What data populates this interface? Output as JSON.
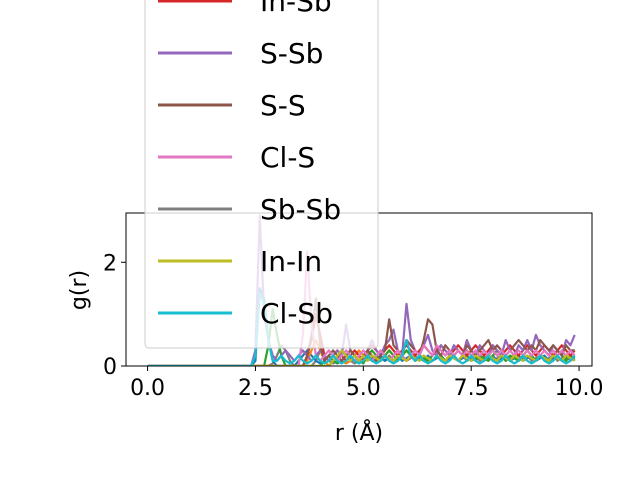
{
  "chart_data": {
    "type": "line",
    "xlabel": "r (Å)",
    "ylabel": "g(r)",
    "xlim": [
      -0.5,
      10.3
    ],
    "ylim": [
      0,
      2.95
    ],
    "xticks": [
      0.0,
      2.5,
      5.0,
      7.5,
      10.0
    ],
    "xtick_labels": [
      "0.0",
      "2.5",
      "5.0",
      "7.5",
      "10.0"
    ],
    "yticks": [
      0,
      2
    ],
    "ytick_labels": [
      "0",
      "2"
    ],
    "grid": false,
    "legend_position": "upper-left, overflowing above the axes",
    "legend_visible": [
      "In-Sb",
      "S-Sb",
      "S-S",
      "Cl-S",
      "Sb-Sb",
      "In-In",
      "Cl-Sb"
    ],
    "x": [
      0.0,
      0.1,
      0.2,
      0.3,
      0.4,
      0.5,
      0.6,
      0.7,
      0.8,
      0.9,
      1.0,
      1.1,
      1.2,
      1.3,
      1.4,
      1.5,
      1.6,
      1.7,
      1.8,
      1.9,
      2.0,
      2.1,
      2.2,
      2.3,
      2.4,
      2.5,
      2.6,
      2.7,
      2.8,
      2.9,
      3.0,
      3.1,
      3.2,
      3.3,
      3.4,
      3.5,
      3.6,
      3.7,
      3.8,
      3.9,
      4.0,
      4.1,
      4.2,
      4.3,
      4.4,
      4.5,
      4.6,
      4.7,
      4.8,
      4.9,
      5.0,
      5.1,
      5.2,
      5.3,
      5.4,
      5.5,
      5.6,
      5.7,
      5.8,
      5.9,
      6.0,
      6.1,
      6.2,
      6.3,
      6.4,
      6.5,
      6.6,
      6.7,
      6.8,
      6.9,
      7.0,
      7.1,
      7.2,
      7.3,
      7.4,
      7.5,
      7.6,
      7.7,
      7.8,
      7.9,
      8.0,
      8.1,
      8.2,
      8.3,
      8.4,
      8.5,
      8.6,
      8.7,
      8.8,
      8.9,
      9.0,
      9.1,
      9.2,
      9.3,
      9.4,
      9.5,
      9.6,
      9.7,
      9.8,
      9.9
    ],
    "series": [
      {
        "name": "Sb-Sb",
        "color": "#7f7f7f",
        "values": [
          0,
          0,
          0,
          0,
          0,
          0,
          0,
          0,
          0,
          0,
          0,
          0,
          0,
          0,
          0,
          0,
          0,
          0,
          0,
          0,
          0,
          0,
          0,
          0,
          0,
          0,
          0,
          0,
          0,
          0.05,
          0.2,
          0.4,
          0.3,
          0.1,
          0,
          0,
          0,
          0,
          0,
          0.1,
          0.3,
          0.2,
          0.1,
          0.05,
          0.1,
          0.3,
          0.2,
          0.1,
          0.05,
          0.1,
          0.2,
          0.15,
          0.1,
          0.2,
          0.15,
          0.1,
          0.2,
          0.1,
          0.15,
          0.2,
          0.1,
          0.15,
          0.2,
          0.1,
          0.2,
          0.15,
          0.1,
          0.2,
          0.15,
          0.1,
          0.2,
          0.15,
          0.1,
          0.2,
          0.1,
          0.15,
          0.2,
          0.1,
          0.15,
          0.2,
          0.1,
          0.15,
          0.2,
          0.1,
          0.15,
          0.2,
          0.1,
          0.15,
          0.2,
          0.1,
          0.15,
          0.2,
          0.1,
          0.15,
          0.2,
          0.1,
          0.15,
          0.2,
          0.1,
          0.15
        ]
      },
      {
        "name": "",
        "color": "#1f77b4",
        "values": [
          0,
          0,
          0,
          0,
          0,
          0,
          0,
          0,
          0,
          0,
          0,
          0,
          0,
          0,
          0,
          0,
          0,
          0,
          0,
          0,
          0,
          0,
          0,
          0,
          0,
          0.1,
          1.5,
          1.3,
          0.5,
          0.1,
          0,
          0,
          0,
          0,
          0,
          0.1,
          0.2,
          0.3,
          0.2,
          0.1,
          0.05,
          0.1,
          0.2,
          0.1,
          0.05,
          0.1,
          0.2,
          0.15,
          0.1,
          0.05,
          0.1,
          0.2,
          0.15,
          0.1,
          0.2,
          0.1,
          0.15,
          0.1,
          0.2,
          0.1,
          0.15,
          0.2,
          0.1,
          0.15,
          0.1,
          0.2,
          0.1,
          0.15,
          0.2,
          0.1,
          0.15,
          0.2,
          0.1,
          0.15,
          0.2,
          0.1,
          0.15,
          0.2,
          0.1,
          0.15,
          0.2,
          0.1,
          0.15,
          0.2,
          0.1,
          0.15,
          0.2,
          0.1,
          0.15,
          0.2,
          0.1,
          0.15,
          0.2,
          0.1,
          0.15,
          0.2,
          0.1,
          0.15,
          0.2,
          0.1
        ]
      },
      {
        "name": "",
        "color": "#ff7f0e",
        "values": [
          0,
          0,
          0,
          0,
          0,
          0,
          0,
          0,
          0,
          0,
          0,
          0,
          0,
          0,
          0,
          0,
          0,
          0,
          0,
          0,
          0,
          0,
          0,
          0,
          0,
          0,
          0,
          0,
          0,
          0,
          0,
          0,
          0,
          0,
          0,
          0,
          0,
          0.1,
          0.3,
          0.5,
          0.3,
          0.1,
          0,
          0.1,
          0.2,
          0.1,
          0.05,
          0.1,
          0.2,
          0.3,
          0.2,
          0.1,
          0.2,
          0.15,
          0.1,
          0.2,
          0.3,
          0.2,
          0.1,
          0.2,
          0.3,
          0.2,
          0.1,
          0.2,
          0.15,
          0.1,
          0.2,
          0.3,
          0.2,
          0.1,
          0.2,
          0.15,
          0.1,
          0.2,
          0.3,
          0.2,
          0.1,
          0.2,
          0.15,
          0.1,
          0.2,
          0.3,
          0.2,
          0.1,
          0.2,
          0.15,
          0.1,
          0.2,
          0.3,
          0.2,
          0.1,
          0.2,
          0.15,
          0.1,
          0.2,
          0.3,
          0.2,
          0.1,
          0.2,
          0.15
        ]
      },
      {
        "name": "",
        "color": "#2ca02c",
        "values": [
          0,
          0,
          0,
          0,
          0,
          0,
          0,
          0,
          0,
          0,
          0,
          0,
          0,
          0,
          0,
          0,
          0,
          0,
          0,
          0,
          0,
          0,
          0,
          0,
          0,
          0,
          0,
          0,
          0.4,
          1.1,
          0.6,
          0.2,
          0,
          0,
          0,
          0,
          0,
          0,
          0,
          0,
          0,
          0.1,
          0.2,
          0.1,
          0.05,
          0.1,
          0.2,
          0.3,
          0.2,
          0.1,
          0.05,
          0.2,
          0.3,
          0.2,
          0.1,
          0.2,
          0.3,
          0.2,
          0.1,
          0.2,
          0.3,
          0.2,
          0.1,
          0.2,
          0.15,
          0.1,
          0.2,
          0.3,
          0.2,
          0.1,
          0.2,
          0.15,
          0.1,
          0.2,
          0.3,
          0.2,
          0.1,
          0.2,
          0.15,
          0.1,
          0.2,
          0.3,
          0.2,
          0.1,
          0.2,
          0.15,
          0.1,
          0.2,
          0.3,
          0.2,
          0.1,
          0.2,
          0.15,
          0.1,
          0.2,
          0.3,
          0.2,
          0.1,
          0.2,
          0.15
        ]
      },
      {
        "name": "In-Sb",
        "color": "#d62728",
        "values": [
          0,
          0,
          0,
          0,
          0,
          0,
          0,
          0,
          0,
          0,
          0,
          0,
          0,
          0,
          0,
          0,
          0,
          0,
          0,
          0,
          0,
          0,
          0,
          0,
          0,
          0,
          0,
          0,
          0,
          0,
          0,
          0,
          0,
          0,
          0,
          0,
          0,
          0.2,
          0.5,
          1.0,
          0.6,
          0.2,
          0.1,
          0.2,
          0.3,
          0.2,
          0.1,
          0.2,
          0.3,
          0.2,
          0.1,
          0.3,
          0.4,
          0.3,
          0.2,
          0.3,
          0.4,
          0.3,
          0.2,
          0.3,
          0.4,
          0.3,
          0.2,
          0.3,
          0.4,
          0.3,
          0.2,
          0.3,
          0.4,
          0.3,
          0.2,
          0.3,
          0.4,
          0.3,
          0.2,
          0.3,
          0.4,
          0.3,
          0.2,
          0.3,
          0.4,
          0.3,
          0.2,
          0.3,
          0.4,
          0.3,
          0.2,
          0.3,
          0.4,
          0.3,
          0.2,
          0.3,
          0.4,
          0.3,
          0.2,
          0.3,
          0.4,
          0.3,
          0.2,
          0.3
        ]
      },
      {
        "name": "S-Sb",
        "color": "#9467bd",
        "values": [
          0,
          0,
          0,
          0,
          0,
          0,
          0,
          0,
          0,
          0,
          0,
          0,
          0,
          0,
          0,
          0,
          0,
          0,
          0,
          0,
          0,
          0,
          0,
          0,
          0,
          0.3,
          2.9,
          1.0,
          0.5,
          0.2,
          0.1,
          0.2,
          0.3,
          0.2,
          0.1,
          0.2,
          0.3,
          0.2,
          0.1,
          0.2,
          0.3,
          0.2,
          0.1,
          0.2,
          0.3,
          0.2,
          0.8,
          0.3,
          0.2,
          0.1,
          0.2,
          0.3,
          0.5,
          0.3,
          0.2,
          0.4,
          0.5,
          0.7,
          0.3,
          0.2,
          1.2,
          0.5,
          0.3,
          0.2,
          0.4,
          0.6,
          0.3,
          0.2,
          0.4,
          0.3,
          0.2,
          0.4,
          0.3,
          0.2,
          0.5,
          0.3,
          0.2,
          0.4,
          0.3,
          0.2,
          0.4,
          0.3,
          0.2,
          0.5,
          0.3,
          0.2,
          0.4,
          0.3,
          0.5,
          0.3,
          0.6,
          0.4,
          0.3,
          0.2,
          0.4,
          0.3,
          0.2,
          0.5,
          0.4,
          0.6
        ]
      },
      {
        "name": "S-S",
        "color": "#8c564b",
        "values": [
          0,
          0,
          0,
          0,
          0,
          0,
          0,
          0,
          0,
          0,
          0,
          0,
          0,
          0,
          0,
          0,
          0,
          0,
          0,
          0,
          0,
          0,
          0,
          0,
          0,
          0,
          0,
          0,
          0,
          0,
          0,
          0,
          0,
          0,
          0,
          0,
          0,
          0.2,
          0.6,
          1.3,
          0.4,
          0.1,
          0.2,
          0.3,
          0.2,
          0.1,
          0.2,
          0.3,
          0.2,
          0.1,
          0.2,
          0.3,
          0.2,
          0.1,
          0.2,
          0.3,
          0.9,
          0.4,
          0.3,
          0.2,
          0.5,
          0.4,
          0.3,
          0.2,
          0.5,
          0.9,
          0.8,
          0.3,
          0.2,
          0.4,
          0.3,
          0.2,
          0.3,
          0.2,
          0.4,
          0.3,
          0.2,
          0.3,
          0.4,
          0.5,
          0.3,
          0.4,
          0.3,
          0.2,
          0.3,
          0.4,
          0.5,
          0.4,
          0.3,
          0.4,
          0.3,
          0.5,
          0.4,
          0.3,
          0.4,
          0.3,
          0.2,
          0.4,
          0.3,
          0.3
        ]
      },
      {
        "name": "Cl-S",
        "color": "#e377c2",
        "values": [
          0,
          0,
          0,
          0,
          0,
          0,
          0,
          0,
          0,
          0,
          0,
          0,
          0,
          0,
          0,
          0,
          0,
          0,
          0,
          0,
          0,
          0,
          0,
          0,
          0,
          0,
          0,
          0,
          0,
          0,
          0,
          0,
          0,
          0,
          0,
          0,
          0.6,
          2.2,
          0.8,
          0.2,
          0.1,
          0.2,
          0.3,
          0.2,
          0.1,
          0.2,
          0.3,
          0.2,
          0.1,
          0.2,
          0.3,
          0.2,
          0.1,
          0.2,
          0.3,
          0.2,
          0.1,
          0.2,
          0.3,
          0.2,
          0.1,
          0.2,
          0.3,
          0.2,
          0.4,
          0.3,
          0.2,
          0.4,
          0.3,
          0.2,
          0.3,
          0.2,
          0.3,
          0.2,
          0.3,
          0.2,
          0.3,
          0.2,
          0.3,
          0.2,
          0.3,
          0.2,
          0.3,
          0.2,
          0.3,
          0.2,
          0.3,
          0.2,
          0.3,
          0.2,
          0.3,
          0.2,
          0.3,
          0.2,
          0.3,
          0.2,
          0.3,
          0.2,
          0.3,
          0.2
        ]
      },
      {
        "name": "In-In",
        "color": "#bcbd22",
        "values": [
          0,
          0,
          0,
          0,
          0,
          0,
          0,
          0,
          0,
          0,
          0,
          0,
          0,
          0,
          0,
          0,
          0,
          0,
          0,
          0,
          0,
          0,
          0,
          0,
          0,
          0,
          0,
          0,
          0,
          0,
          0,
          0,
          0,
          0,
          0,
          0,
          0,
          0,
          0,
          0,
          0,
          0,
          0,
          0.1,
          0.2,
          0.3,
          0.2,
          0.1,
          0.2,
          0.1,
          0.2,
          0.1,
          0.2,
          0.15,
          0.1,
          0.2,
          0.15,
          0.1,
          0.2,
          0.15,
          0.1,
          0.2,
          0.15,
          0.1,
          0.2,
          0.15,
          0.1,
          0.2,
          0.15,
          0.1,
          0.2,
          0.15,
          0.1,
          0.2,
          0.15,
          0.1,
          0.2,
          0.15,
          0.1,
          0.2,
          0.15,
          0.1,
          0.2,
          0.15,
          0.1,
          0.2,
          0.15,
          0.1,
          0.2,
          0.15,
          0.1,
          0.2,
          0.15,
          0.1,
          0.2,
          0.15,
          0.1,
          0.2,
          0.15,
          0.1
        ]
      },
      {
        "name": "Cl-Sb",
        "color": "#17becf",
        "values": [
          0,
          0,
          0,
          0,
          0,
          0,
          0,
          0,
          0,
          0,
          0,
          0,
          0,
          0,
          0,
          0,
          0,
          0,
          0,
          0,
          0,
          0,
          0,
          0,
          0,
          0.2,
          1.4,
          1.2,
          0.5,
          0.1,
          0.1,
          0.2,
          0.1,
          0.05,
          0.1,
          0.2,
          0.1,
          0.05,
          0.1,
          0.2,
          0.1,
          0.05,
          0.1,
          0.2,
          0.1,
          0.05,
          0.1,
          0.2,
          0.1,
          0.05,
          0.1,
          0.2,
          0.1,
          0.05,
          0.1,
          0.2,
          0.1,
          0.05,
          0.1,
          0.2,
          0.5,
          0.2,
          0.1,
          0.2,
          0.1,
          0.05,
          0.1,
          0.2,
          0.1,
          0.05,
          0.1,
          0.2,
          0.1,
          0.05,
          0.1,
          0.2,
          0.1,
          0.05,
          0.1,
          0.2,
          0.1,
          0.05,
          0.1,
          0.2,
          0.1,
          0.05,
          0.1,
          0.2,
          0.1,
          0.05,
          0.1,
          0.2,
          0.1,
          0.05,
          0.1,
          0.2,
          0.1,
          0.05,
          0.1,
          0.2
        ]
      }
    ]
  }
}
